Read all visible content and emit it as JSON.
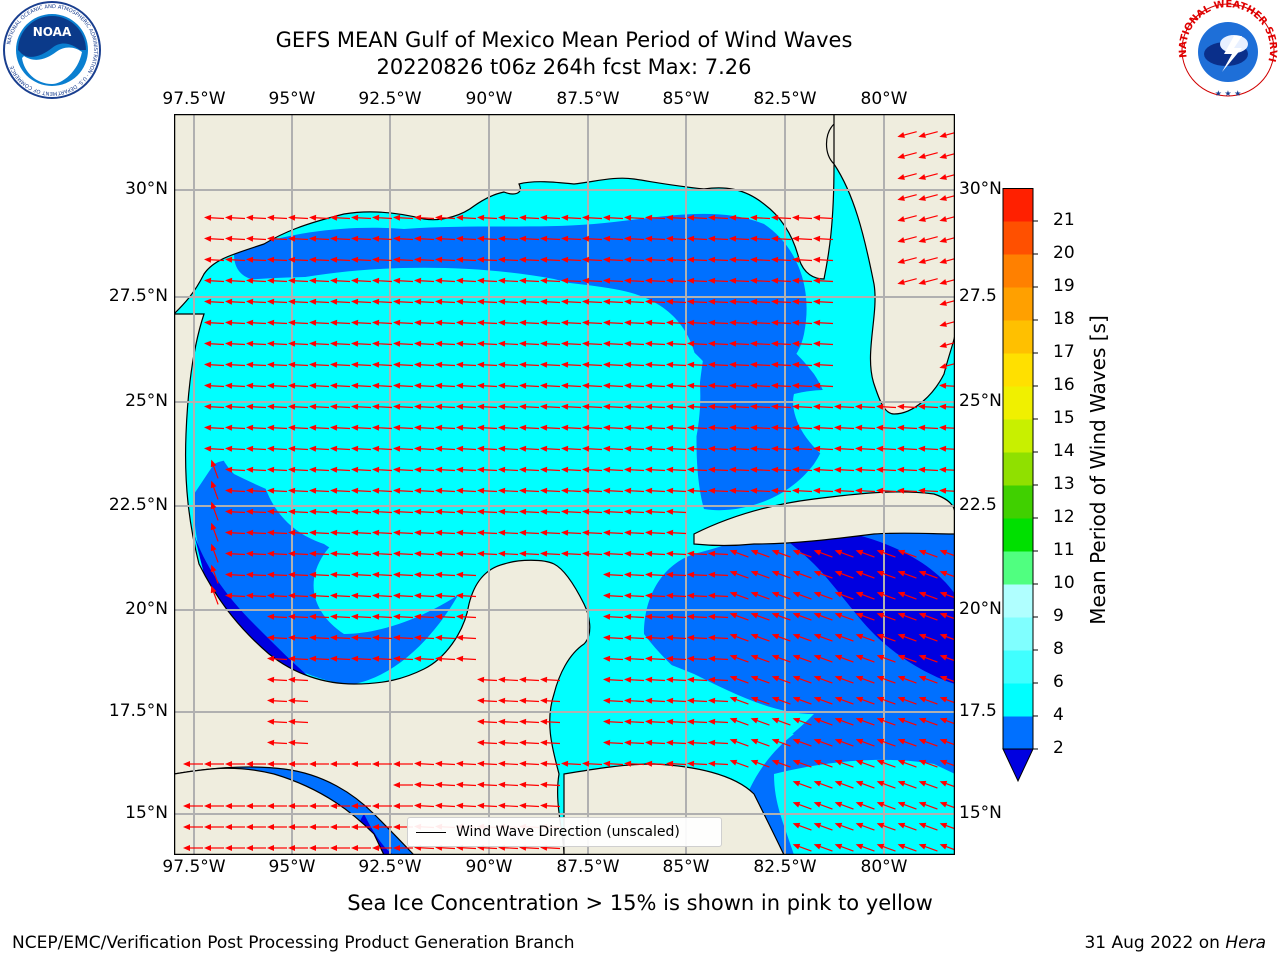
{
  "title_line1": "GEFS MEAN Gulf of Mexico Mean Period of Wind Waves",
  "title_line2": "20220826 t06z 264h fcst   Max: 7.26",
  "noaa_logo": {
    "center_text": "NOAA",
    "ring_text": "NATIONAL OCEANIC AND ATMOSPHERIC ADMINISTRATION · U.S. DEPARTMENT OF COMMERCE"
  },
  "nws_logo": {
    "ring_text": "NATIONAL WEATHER SERVICE"
  },
  "lon_ticks": [
    "97.5°W",
    "95°W",
    "92.5°W",
    "90°W",
    "87.5°W",
    "85°W",
    "82.5°W",
    "80°W"
  ],
  "lat_ticks": [
    "30°N",
    "27.5°N",
    "25°N",
    "22.5°N",
    "20°N",
    "17.5°N",
    "15°N"
  ],
  "lat_ticks_right": [
    "30°N",
    "27.5",
    "25°N",
    "22.5",
    "20°N",
    "17.5",
    "15°N"
  ],
  "colorbar": {
    "label": "Mean Period of Wind Waves [s]",
    "ticks": [
      "2",
      "4",
      "6",
      "8",
      "9",
      "10",
      "11",
      "12",
      "13",
      "14",
      "15",
      "16",
      "17",
      "18",
      "19",
      "20",
      "21"
    ],
    "colors": [
      "#0000e0",
      "#0070ff",
      "#00ffff",
      "#40ffff",
      "#80ffff",
      "#b0ffff",
      "#50ff80",
      "#00e000",
      "#40d000",
      "#90e000",
      "#c8f000",
      "#f0f000",
      "#ffe000",
      "#ffc000",
      "#ffa000",
      "#ff8000",
      "#ff5000",
      "#ff2000"
    ]
  },
  "legend_label": "Wind Wave Direction (unscaled)",
  "sea_ice_note": "Sea Ice Concentration > 15% is shown in pink to yellow",
  "footer_left": "NCEP/EMC/Verification Post Processing Product Generation Branch",
  "footer_right_prefix": "31 Aug 2022 on ",
  "footer_right_machine": "Hera",
  "colors": {
    "land": "#efedde",
    "grid": "#b0b0b0",
    "arrow": "#ff0000"
  }
}
